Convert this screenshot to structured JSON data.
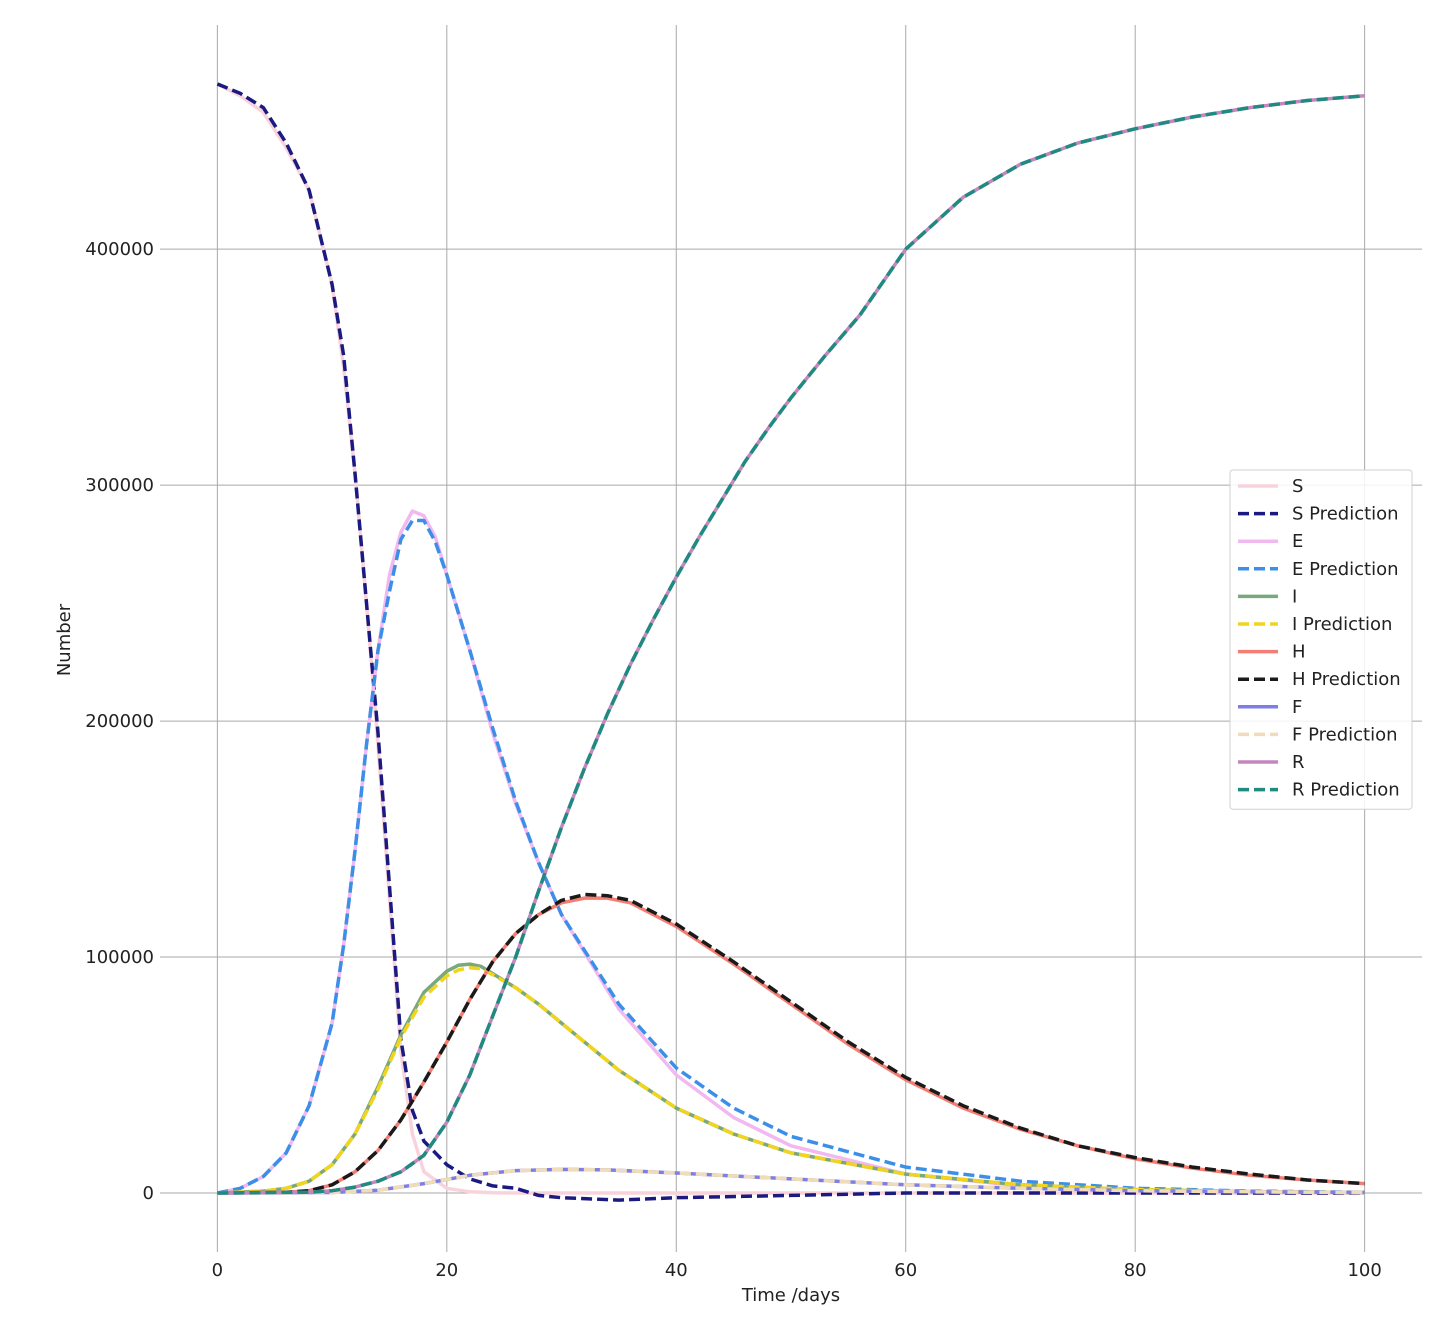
{
  "chart_data": {
    "type": "line",
    "title": "",
    "xlabel": "Time /days",
    "ylabel": "Number",
    "xlim": [
      -5,
      105
    ],
    "ylim": [
      -25000,
      495000
    ],
    "xticks": [
      0,
      20,
      40,
      60,
      80,
      100
    ],
    "yticks": [
      0,
      100000,
      200000,
      300000,
      400000
    ],
    "grid": true,
    "legend_position": "center-right",
    "series": [
      {
        "name": "S",
        "style": "solid",
        "color": "#f9d3dc",
        "x": [
          0,
          2,
          4,
          6,
          8,
          10,
          11,
          12,
          13,
          14,
          15,
          16,
          17,
          18,
          20,
          22,
          24,
          26,
          30,
          40,
          60,
          80,
          100
        ],
        "y": [
          470000,
          465000,
          458000,
          443000,
          425000,
          385000,
          350000,
          305000,
          250000,
          190000,
          125000,
          60000,
          25000,
          9000,
          2000,
          500,
          100,
          0,
          0,
          0,
          0,
          0,
          0
        ]
      },
      {
        "name": "S Prediction",
        "style": "dashed",
        "color": "#1a1a80",
        "x": [
          0,
          2,
          4,
          6,
          8,
          10,
          11,
          12,
          13,
          14,
          15,
          16,
          17,
          18,
          20,
          22,
          24,
          26,
          28,
          30,
          35,
          40,
          50,
          60,
          70,
          80,
          90,
          100
        ],
        "y": [
          470000,
          466000,
          460000,
          445000,
          425000,
          385000,
          355000,
          305000,
          250000,
          195000,
          130000,
          65000,
          35000,
          22000,
          12000,
          6000,
          3000,
          2000,
          -1000,
          -2000,
          -3000,
          -2000,
          -1000,
          0,
          0,
          0,
          0,
          0
        ]
      },
      {
        "name": "E",
        "style": "solid",
        "color": "#f2b8f0",
        "x": [
          0,
          2,
          4,
          6,
          8,
          10,
          11,
          12,
          13,
          14,
          15,
          16,
          17,
          18,
          19,
          20,
          22,
          24,
          26,
          28,
          30,
          35,
          40,
          45,
          50,
          60,
          70,
          80,
          90,
          100
        ],
        "y": [
          0,
          2000,
          7000,
          17000,
          37000,
          72000,
          105000,
          145000,
          190000,
          230000,
          262000,
          280000,
          289000,
          287000,
          278000,
          262000,
          230000,
          195000,
          165000,
          140000,
          118000,
          78000,
          50000,
          32000,
          20000,
          8000,
          3000,
          1000,
          500,
          200
        ]
      },
      {
        "name": "E Prediction",
        "style": "dashed",
        "color": "#3b8fe8",
        "x": [
          0,
          2,
          4,
          6,
          8,
          10,
          11,
          12,
          13,
          14,
          15,
          16,
          17,
          18,
          19,
          20,
          22,
          24,
          26,
          28,
          30,
          35,
          40,
          45,
          50,
          60,
          70,
          80,
          90,
          100
        ],
        "y": [
          0,
          2000,
          7000,
          17000,
          37000,
          72000,
          105000,
          145000,
          190000,
          230000,
          255000,
          277000,
          285000,
          285000,
          276000,
          262000,
          230000,
          197000,
          166000,
          140000,
          118000,
          80000,
          53000,
          36000,
          24000,
          11000,
          5000,
          2000,
          800,
          300
        ]
      },
      {
        "name": "I",
        "style": "solid",
        "color": "#79a87a",
        "x": [
          0,
          4,
          6,
          8,
          10,
          12,
          14,
          16,
          18,
          20,
          21,
          22,
          23,
          24,
          26,
          28,
          30,
          35,
          40,
          45,
          50,
          60,
          70,
          80,
          90,
          100
        ],
        "y": [
          0,
          800,
          2000,
          5000,
          12000,
          25000,
          45000,
          67000,
          85000,
          94000,
          96500,
          97000,
          96000,
          93000,
          87000,
          80000,
          72000,
          52000,
          36000,
          25000,
          17000,
          8000,
          3500,
          1500,
          600,
          200
        ]
      },
      {
        "name": "I Prediction",
        "style": "dashed",
        "color": "#f2d41e",
        "x": [
          0,
          4,
          6,
          8,
          10,
          12,
          14,
          16,
          18,
          20,
          21,
          22,
          23,
          24,
          26,
          28,
          30,
          35,
          40,
          45,
          50,
          60,
          70,
          80,
          90,
          100
        ],
        "y": [
          0,
          800,
          2000,
          5000,
          12000,
          25000,
          44000,
          66000,
          83000,
          92000,
          94500,
          95500,
          95000,
          92500,
          87000,
          80000,
          72000,
          52000,
          36000,
          25000,
          17000,
          8000,
          3500,
          1500,
          600,
          200
        ]
      },
      {
        "name": "H",
        "style": "solid",
        "color": "#f47e74",
        "x": [
          0,
          6,
          8,
          10,
          12,
          14,
          16,
          18,
          20,
          22,
          24,
          26,
          28,
          30,
          32,
          34,
          36,
          40,
          45,
          50,
          55,
          60,
          65,
          70,
          75,
          80,
          85,
          90,
          95,
          100
        ],
        "y": [
          0,
          300,
          1000,
          3500,
          9000,
          18000,
          31000,
          47000,
          64000,
          82000,
          98000,
          110000,
          118000,
          123000,
          125000,
          125000,
          123000,
          113000,
          97000,
          80000,
          63000,
          48000,
          36000,
          27000,
          20000,
          14500,
          10500,
          7500,
          5500,
          4000
        ]
      },
      {
        "name": "H Prediction",
        "style": "dashed",
        "color": "#1a1a1a",
        "x": [
          0,
          6,
          8,
          10,
          12,
          14,
          16,
          18,
          20,
          22,
          24,
          26,
          28,
          30,
          32,
          34,
          36,
          40,
          45,
          50,
          55,
          60,
          65,
          70,
          75,
          80,
          85,
          90,
          95,
          100
        ],
        "y": [
          0,
          300,
          1000,
          3500,
          9000,
          18000,
          31000,
          47000,
          64000,
          82000,
          98000,
          110000,
          118000,
          124000,
          126500,
          126000,
          124000,
          114000,
          98000,
          81000,
          64000,
          49000,
          37000,
          27500,
          20000,
          15000,
          11000,
          8000,
          5500,
          4000
        ]
      },
      {
        "name": "F",
        "style": "solid",
        "color": "#7e7ee8",
        "x": [
          0,
          10,
          14,
          18,
          22,
          26,
          30,
          34,
          40,
          50,
          60,
          70,
          80,
          90,
          100
        ],
        "y": [
          0,
          200,
          1200,
          4000,
          7500,
          9500,
          10000,
          9800,
          8500,
          6000,
          3500,
          2000,
          1000,
          500,
          200
        ]
      },
      {
        "name": "F Prediction",
        "style": "dashed",
        "color": "#f0dcb8",
        "x": [
          0,
          10,
          14,
          18,
          22,
          26,
          30,
          34,
          40,
          50,
          60,
          70,
          80,
          90,
          100
        ],
        "y": [
          0,
          200,
          1200,
          4000,
          7500,
          9500,
          10000,
          9800,
          8500,
          6000,
          3500,
          2000,
          1000,
          500,
          200
        ]
      },
      {
        "name": "R",
        "style": "solid",
        "color": "#c586c0",
        "x": [
          0,
          8,
          10,
          12,
          14,
          16,
          18,
          20,
          22,
          24,
          26,
          28,
          30,
          32,
          34,
          36,
          38,
          40,
          42,
          44,
          46,
          48,
          50,
          53,
          56,
          60,
          65,
          70,
          75,
          80,
          85,
          90,
          95,
          100
        ],
        "y": [
          0,
          300,
          1000,
          2500,
          5000,
          9000,
          16000,
          30000,
          50000,
          75000,
          100000,
          128000,
          155000,
          180000,
          203000,
          224000,
          243000,
          261000,
          278000,
          294000,
          310000,
          324000,
          337000,
          355000,
          372000,
          400000,
          422000,
          436000,
          445000,
          451000,
          456000,
          460000,
          463000,
          465000
        ]
      },
      {
        "name": "R Prediction",
        "style": "dashed",
        "color": "#1f8a80",
        "x": [
          0,
          8,
          10,
          12,
          14,
          16,
          18,
          20,
          22,
          24,
          26,
          28,
          30,
          32,
          34,
          36,
          38,
          40,
          42,
          44,
          46,
          48,
          50,
          53,
          56,
          60,
          65,
          70,
          75,
          80,
          85,
          90,
          95,
          100
        ],
        "y": [
          0,
          300,
          1000,
          2500,
          5000,
          9000,
          16000,
          30000,
          50000,
          75000,
          100000,
          128000,
          155000,
          180000,
          203000,
          224000,
          243000,
          261000,
          278000,
          294000,
          310000,
          324000,
          337000,
          355000,
          372000,
          400000,
          422000,
          436000,
          445000,
          451000,
          456000,
          460000,
          463000,
          465000
        ]
      }
    ]
  }
}
